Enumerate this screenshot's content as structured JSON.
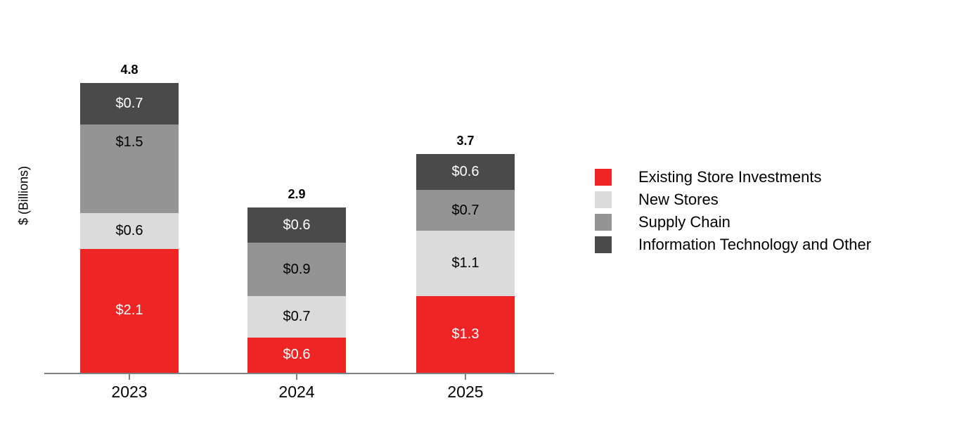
{
  "chart_data": {
    "type": "bar",
    "stacked": true,
    "title": "",
    "ylabel": "$ (Billions)",
    "xlabel": "",
    "unit": "$ Billions",
    "categories": [
      "2023",
      "2024",
      "2025"
    ],
    "series": [
      {
        "name": "Existing Store Investments",
        "color": "#EE2524",
        "label_color": "#FFFFFF",
        "values": [
          2.1,
          0.6,
          1.3
        ],
        "labels": [
          "$2.1",
          "$0.6",
          "$1.3"
        ]
      },
      {
        "name": "New Stores",
        "color": "#DBDBDB",
        "label_color": "#000000",
        "values": [
          0.6,
          0.7,
          1.1
        ],
        "labels": [
          "$0.6",
          "$0.7",
          "$1.1"
        ]
      },
      {
        "name": "Supply Chain",
        "color": "#949494",
        "label_color": "#000000",
        "values": [
          1.5,
          0.9,
          0.7
        ],
        "labels": [
          "$1.5",
          "$0.9",
          "$0.7"
        ]
      },
      {
        "name": "Information Technology and Other",
        "color": "#4A4A4A",
        "label_color": "#FFFFFF",
        "values": [
          0.7,
          0.6,
          0.6
        ],
        "labels": [
          "$0.7",
          "$0.6",
          "$0.6"
        ]
      }
    ],
    "totals": [
      "4.8",
      "2.9",
      "3.7"
    ],
    "axis_color": "#808080",
    "legend_position": "right",
    "grid": false
  }
}
